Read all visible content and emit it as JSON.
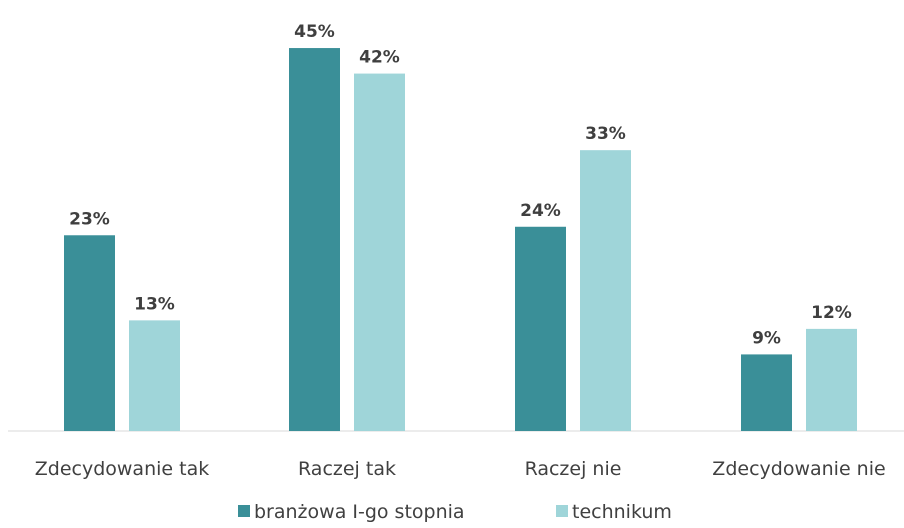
{
  "chart_data": {
    "type": "bar",
    "categories": [
      "Zdecydowanie tak",
      "Raczej tak",
      "Raczej nie",
      "Zdecydowanie nie"
    ],
    "series": [
      {
        "name": "branżowa I-go stopnia",
        "color": "#3a8f98",
        "values": [
          23,
          45,
          24,
          9
        ]
      },
      {
        "name": "technikum",
        "color": "#9fd5d9",
        "values": [
          13,
          42,
          33,
          12
        ]
      }
    ],
    "value_suffix": "%",
    "ylim": [
      0,
      50
    ],
    "grid": false,
    "legend_position": "bottom",
    "axis_color": "#d9d9d9"
  }
}
